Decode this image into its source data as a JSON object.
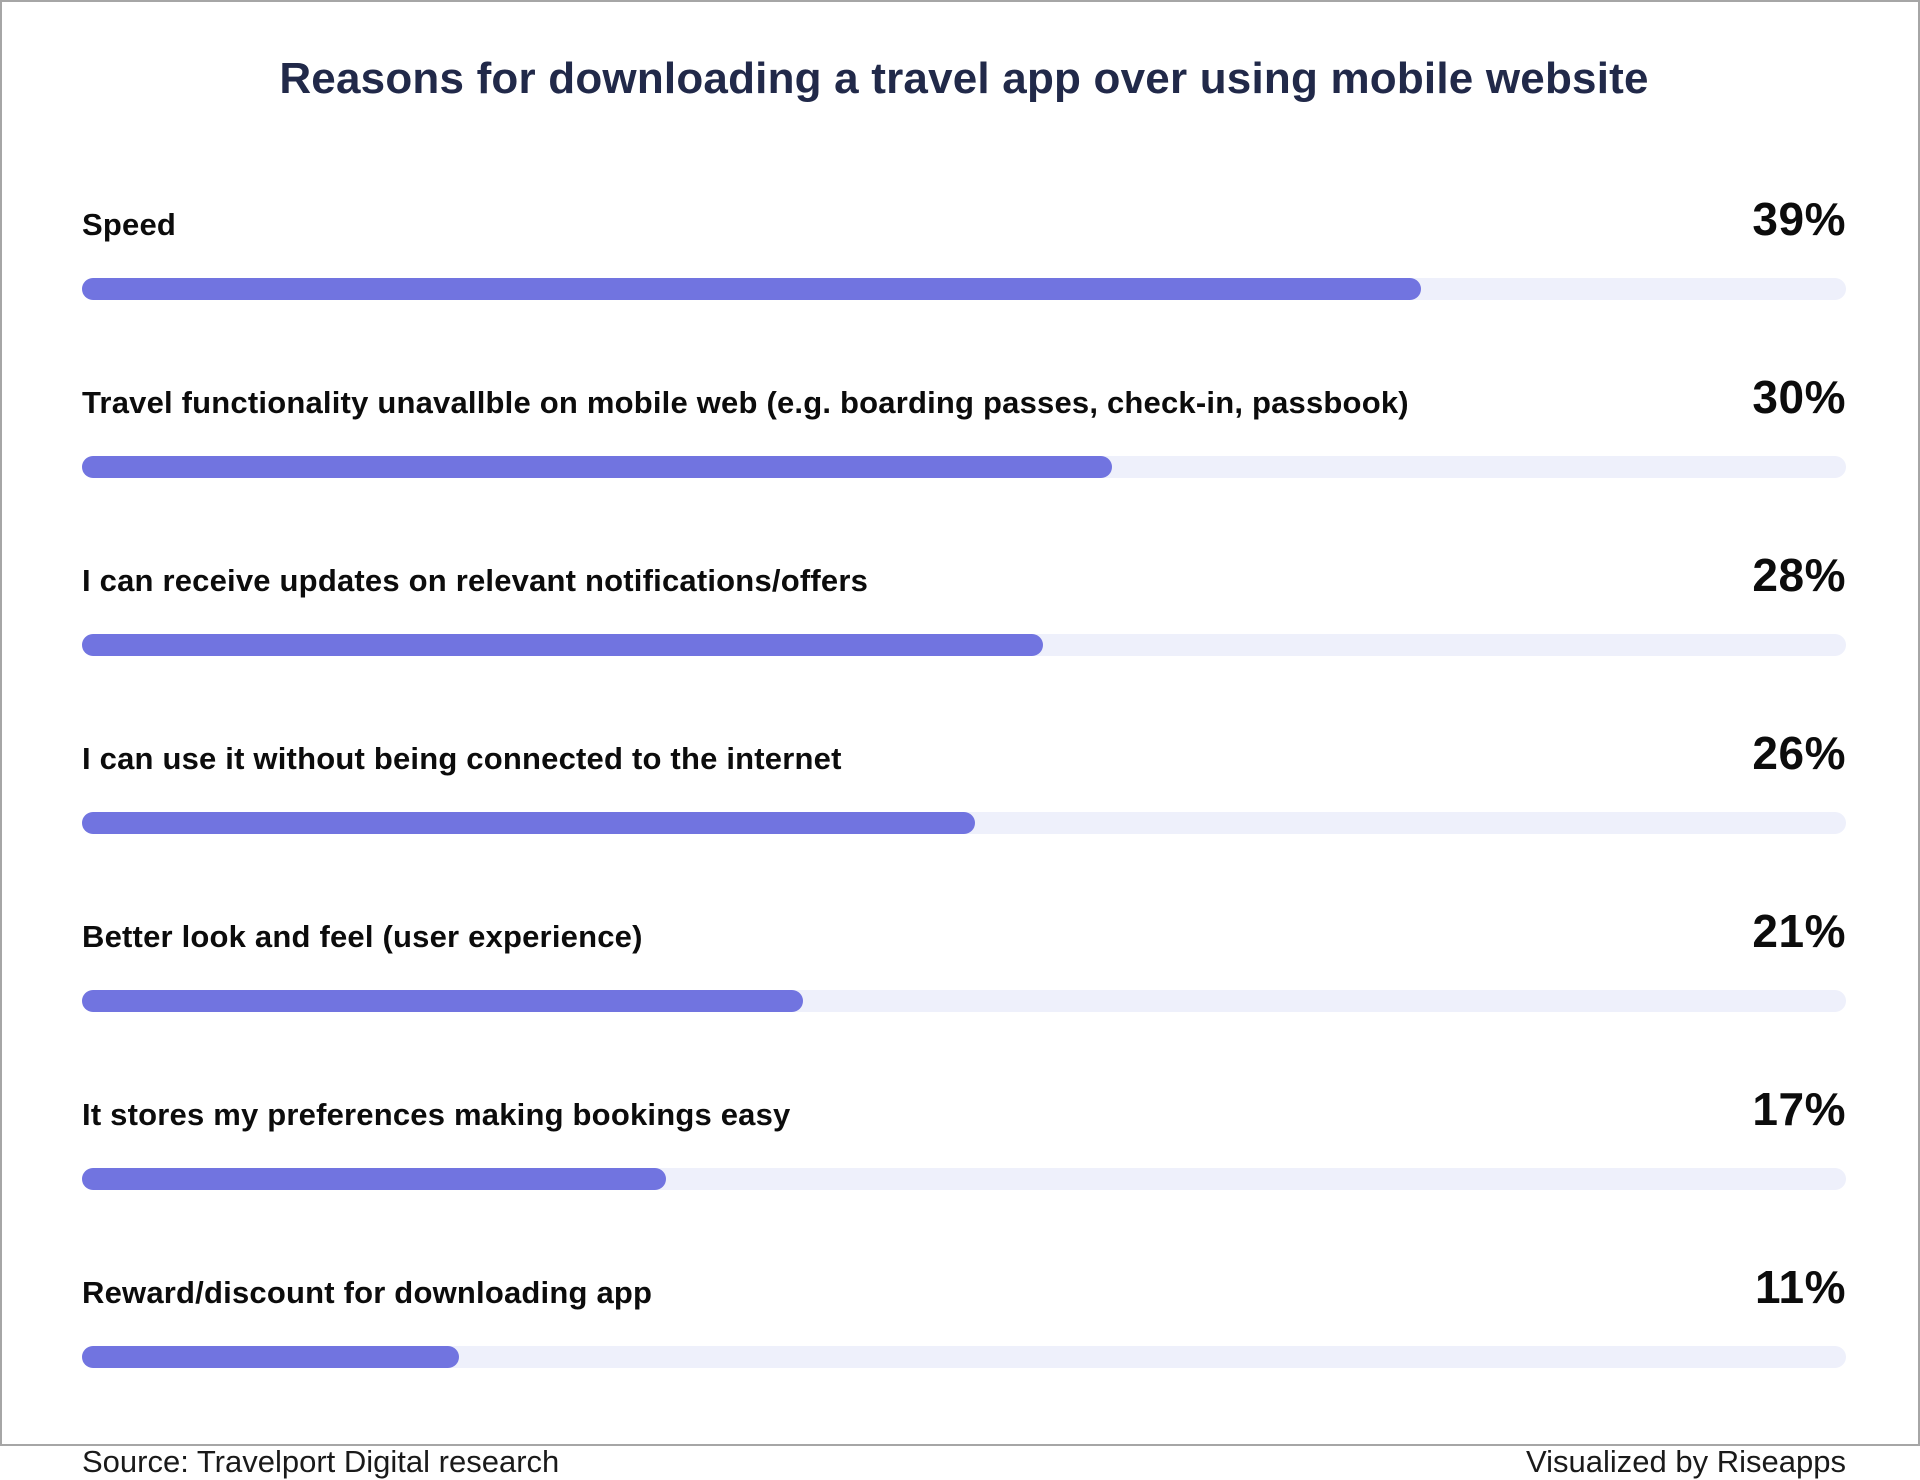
{
  "title": "Reasons for downloading a travel app over using mobile website",
  "footer": {
    "source": "Source: Travelport Digital research",
    "credit": "Visualized by Riseapps"
  },
  "colors": {
    "title_text": "#212949",
    "bar_fill": "#7174e0",
    "bar_track": "#eef0fb",
    "label_text": "#0c0c0c",
    "frame_border": "#a6a6a6",
    "background": "#ffffff"
  },
  "chart_data": {
    "type": "bar",
    "orientation": "horizontal",
    "title": "Reasons for downloading a travel app over using mobile website",
    "categories": [
      "Speed",
      "Travel functionality unavallble on mobile web (e.g. boarding passes, check-in, passbook)",
      "I can receive updates on relevant notifications/offers",
      "I can use it without being connected to the internet",
      "Better look and feel (user experience)",
      "It stores my preferences making bookings easy",
      "Reward/discount for downloading app"
    ],
    "values": [
      39,
      30,
      28,
      26,
      21,
      17,
      11
    ],
    "value_labels": [
      "39%",
      "30%",
      "28%",
      "26%",
      "21%",
      "17%",
      "11%"
    ],
    "unit": "%",
    "bar_scale_max": 51.4,
    "grid": false,
    "legend": false,
    "value_label_position": "right-aligned-above-bar"
  }
}
